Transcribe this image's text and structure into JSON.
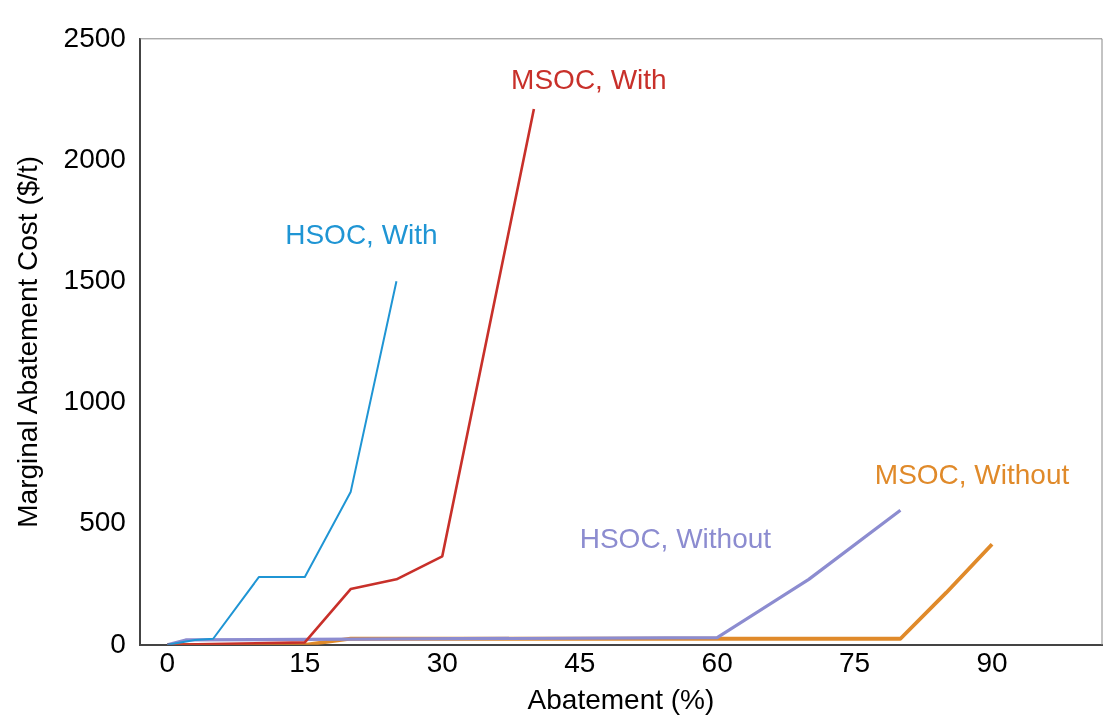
{
  "chart_data": {
    "type": "line",
    "xlabel": "Abatement (%)",
    "ylabel": "Marginal Abatement Cost ($/t)",
    "xlim": [
      -3,
      102
    ],
    "ylim": [
      0,
      2500
    ],
    "xticks": [
      0,
      15,
      30,
      45,
      60,
      75,
      90
    ],
    "yticks": [
      0,
      500,
      1000,
      1500,
      2000,
      2500
    ],
    "grid": false,
    "legend": false,
    "marker": "none",
    "series": [
      {
        "name": "HSOC, With",
        "color": "#1f95d4",
        "x": [
          0,
          3,
          5,
          10,
          15,
          20,
          25
        ],
        "values": [
          0,
          20,
          25,
          280,
          280,
          630,
          1500
        ]
      },
      {
        "name": "MSOC, With",
        "color": "#c8302a",
        "x": [
          0,
          15,
          20,
          25,
          30,
          40
        ],
        "values": [
          0,
          10,
          230,
          270,
          365,
          2210
        ]
      },
      {
        "name": "HSOC, Without",
        "color": "#8c8cd0",
        "x": [
          0,
          2,
          60,
          70,
          80
        ],
        "values": [
          0,
          20,
          30,
          270,
          555
        ]
      },
      {
        "name": "MSOC, Without",
        "color": "#e08a2a",
        "x": [
          0,
          15,
          20,
          80,
          85,
          90
        ],
        "values": [
          0,
          0,
          25,
          25,
          215,
          415
        ]
      }
    ]
  }
}
